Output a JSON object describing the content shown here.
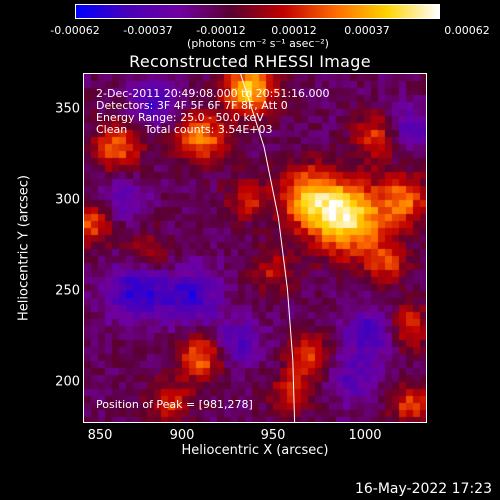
{
  "chart_data": {
    "type": "heatmap",
    "title": "Reconstructed RHESSI Image",
    "xlabel": "Heliocentric X (arcsec)",
    "ylabel": "Heliocentric Y (arcsec)",
    "xlim": [
      840,
      1030
    ],
    "ylim": [
      175,
      371
    ],
    "x_ticks": [
      "850",
      "900",
      "950",
      "1000"
    ],
    "y_ticks": [
      "350",
      "300",
      "250",
      "200"
    ],
    "colorbar": {
      "ticks": [
        "-0.00062",
        "-0.00037",
        "-0.00012",
        "0.00012",
        "0.00037",
        "0.00062"
      ],
      "unit_label": "(photons cm⁻² s⁻¹ asec⁻²)",
      "colors": [
        "#0000ff",
        "#4a00b8",
        "#7000a0",
        "#5a0030",
        "#c00000",
        "#ff6a00",
        "#ffd400",
        "#ffffff"
      ]
    },
    "annotations": [
      "2-Dec-2011 20:49:08.000 to 20:51:16.000",
      "Detectors: 3F 4F 5F 6F 7F 8F, Att 0",
      "Energy Range: 25.0 - 50.0 keV",
      "Clean     Total counts: 3.54E+03"
    ],
    "peak_label": "Position of Peak = [981,278]",
    "peak": [
      981,
      278
    ],
    "limb_points": [
      [
        927,
        371
      ],
      [
        940,
        330
      ],
      [
        948,
        290
      ],
      [
        953,
        250
      ],
      [
        956,
        210
      ],
      [
        957,
        175
      ]
    ],
    "hot_spots": [
      {
        "x": 986,
        "y": 290,
        "amp": 1.0,
        "r": 14
      },
      {
        "x": 964,
        "y": 302,
        "amp": 0.7,
        "r": 12
      },
      {
        "x": 932,
        "y": 362,
        "amp": 0.85,
        "r": 10
      },
      {
        "x": 905,
        "y": 335,
        "amp": 0.65,
        "r": 10
      },
      {
        "x": 858,
        "y": 330,
        "amp": 0.55,
        "r": 10
      },
      {
        "x": 1018,
        "y": 300,
        "amp": 0.6,
        "r": 10
      },
      {
        "x": 845,
        "y": 288,
        "amp": 0.55,
        "r": 9
      },
      {
        "x": 875,
        "y": 268,
        "amp": 0.4,
        "r": 9
      },
      {
        "x": 1003,
        "y": 336,
        "amp": 0.5,
        "r": 9
      },
      {
        "x": 1008,
        "y": 265,
        "amp": 0.45,
        "r": 9
      },
      {
        "x": 1020,
        "y": 228,
        "amp": 0.5,
        "r": 9
      },
      {
        "x": 905,
        "y": 212,
        "amp": 0.6,
        "r": 9
      },
      {
        "x": 965,
        "y": 212,
        "amp": 0.55,
        "r": 8
      },
      {
        "x": 955,
        "y": 192,
        "amp": 0.45,
        "r": 8
      },
      {
        "x": 1022,
        "y": 185,
        "amp": 0.5,
        "r": 8
      },
      {
        "x": 888,
        "y": 187,
        "amp": 0.45,
        "r": 8
      },
      {
        "x": 945,
        "y": 260,
        "amp": 0.35,
        "r": 8
      },
      {
        "x": 930,
        "y": 300,
        "amp": 0.4,
        "r": 8
      }
    ],
    "cold_spots": [
      {
        "x": 870,
        "y": 250,
        "amp": -0.6,
        "r": 12
      },
      {
        "x": 900,
        "y": 245,
        "amp": -0.5,
        "r": 11
      },
      {
        "x": 880,
        "y": 355,
        "amp": -0.45,
        "r": 9
      },
      {
        "x": 1000,
        "y": 225,
        "amp": -0.5,
        "r": 10
      },
      {
        "x": 860,
        "y": 300,
        "amp": -0.4,
        "r": 9
      },
      {
        "x": 1020,
        "y": 340,
        "amp": -0.4,
        "r": 9
      },
      {
        "x": 925,
        "y": 220,
        "amp": -0.4,
        "r": 9
      },
      {
        "x": 990,
        "y": 200,
        "amp": -0.35,
        "r": 9
      }
    ]
  },
  "footer": {
    "datestamp": "16-May-2022 17:23"
  }
}
